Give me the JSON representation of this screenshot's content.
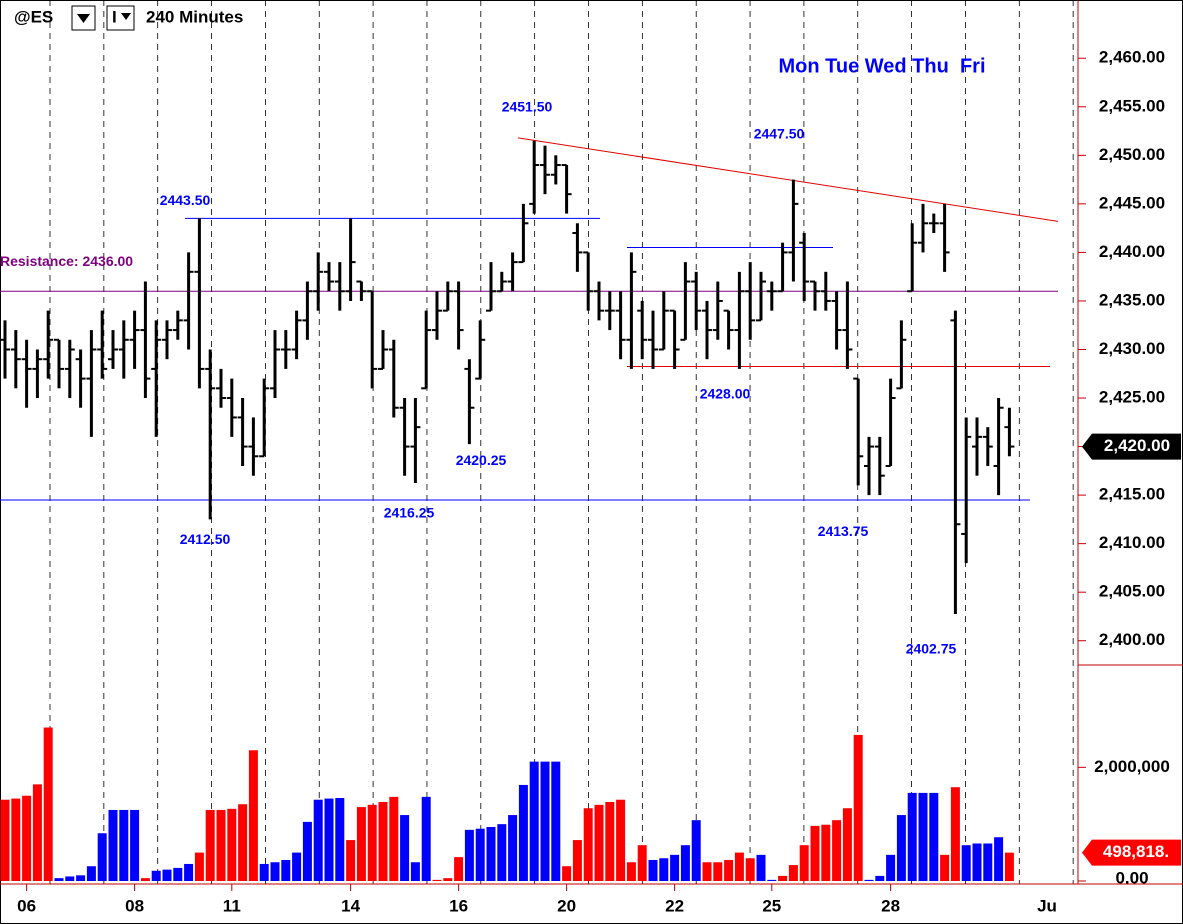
{
  "chart_data": {
    "type": "ohlc",
    "toolbar": {
      "symbol": "@ES",
      "interval_type": "I",
      "interval": "240 Minutes"
    },
    "days_label": "Mon Tue Wed Thu  Fri",
    "categories": [
      null,
      null,
      "06",
      null,
      null,
      null,
      null,
      null,
      null,
      null,
      null,
      null,
      "08",
      null,
      null,
      null,
      null,
      null,
      null,
      null,
      null,
      "11",
      null,
      null,
      null,
      null,
      null,
      null,
      null,
      null,
      null,
      null,
      "14",
      null,
      null,
      null,
      null,
      null,
      null,
      null,
      null,
      null,
      "16",
      null,
      null,
      null,
      null,
      null,
      null,
      null,
      null,
      null,
      "20",
      null,
      null,
      null,
      null,
      null,
      null,
      null,
      null,
      null,
      "22",
      null,
      null,
      null,
      null,
      null,
      null,
      null,
      null,
      "25",
      null,
      null,
      null,
      null,
      null,
      null,
      null,
      null,
      null,
      null,
      "28",
      null,
      null,
      null,
      null,
      null,
      null,
      null,
      null,
      null,
      null,
      null
    ],
    "x_end_label": "Ju",
    "color": "#000000",
    "open": [
      2431,
      2430,
      2429,
      2428,
      2429,
      2431,
      2428,
      2429,
      2427,
      2430,
      2429,
      2430,
      2431,
      2432,
      2428,
      2431,
      2432,
      2433,
      2438,
      2428,
      2426,
      2425,
      2423,
      2420,
      2419,
      2426,
      2430,
      2430,
      2433,
      2436,
      2438,
      2437,
      2436,
      2437,
      2436,
      2428,
      2430,
      2424,
      2420,
      2426,
      2432,
      2434,
      2436,
      2428,
      2427,
      2434,
      2436,
      2437,
      2439,
      2445,
      2449,
      2448,
      2449,
      2442,
      2440,
      2436,
      2434,
      2434,
      2431,
      2434,
      2431,
      2430,
      2434,
      2431,
      2437,
      2434,
      2432,
      2434,
      2432,
      2436,
      2433,
      2436,
      2436,
      2440,
      2441,
      2437,
      2436,
      2435,
      2432,
      2427,
      2418,
      2420,
      2418,
      2426,
      2436,
      2441,
      2443,
      2443,
      2433,
      2411,
      2420,
      2421,
      2418,
      2422
    ],
    "high": [
      2433,
      2432,
      2431,
      2430,
      2434,
      2431,
      2431,
      2430,
      2432,
      2434,
      2432,
      2433,
      2434,
      2437,
      2433,
      2433,
      2434,
      2440,
      2443.5,
      2430,
      2428,
      2427,
      2425,
      2423,
      2427,
      2432,
      2432,
      2434,
      2437,
      2440,
      2439,
      2439,
      2443.5,
      2437,
      2436,
      2432,
      2431,
      2425,
      2425,
      2434,
      2436,
      2437,
      2437,
      2429,
      2433,
      2439,
      2438,
      2440,
      2445,
      2451.5,
      2451,
      2450,
      2449,
      2443,
      2440,
      2437,
      2436,
      2436,
      2440,
      2435,
      2434,
      2436,
      2434,
      2439,
      2438,
      2435,
      2437,
      2434,
      2438,
      2439,
      2438,
      2437,
      2441,
      2447.5,
      2442,
      2437,
      2438,
      2436,
      2437,
      2427,
      2421,
      2421,
      2427,
      2433,
      2443,
      2445,
      2444,
      2445,
      2434,
      2423,
      2423,
      2422,
      2425,
      2424
    ],
    "low": [
      2427,
      2426,
      2424,
      2425,
      2427,
      2426,
      2425,
      2424,
      2421,
      2427,
      2428,
      2427,
      2428,
      2425,
      2421,
      2429,
      2431,
      2430,
      2426,
      2412.5,
      2424,
      2421,
      2418,
      2417,
      2419,
      2425,
      2428,
      2429,
      2431,
      2434,
      2436,
      2434,
      2435,
      2435,
      2426,
      2428,
      2423,
      2417,
      2416.25,
      2426,
      2431,
      2434,
      2430,
      2420.25,
      2427,
      2434,
      2436,
      2436,
      2439,
      2444,
      2446,
      2447,
      2444,
      2438,
      2434,
      2433,
      2432,
      2429,
      2428,
      2429,
      2428,
      2430,
      2428,
      2431,
      2432,
      2429,
      2431,
      2430,
      2428,
      2431,
      2433,
      2434,
      2436,
      2437,
      2435,
      2434,
      2434,
      2430,
      2428,
      2416,
      2415,
      2415,
      2418,
      2426,
      2436,
      2440,
      2442,
      2438,
      2402.75,
      2408,
      2417,
      2418,
      2415,
      2419
    ],
    "close": [
      2430,
      2429,
      2428,
      2429,
      2431,
      2428,
      2430,
      2427,
      2430,
      2428,
      2430,
      2431,
      2432,
      2427,
      2431,
      2432,
      2433,
      2438,
      2428,
      2426,
      2425,
      2423,
      2420,
      2419,
      2426,
      2430,
      2430,
      2433,
      2436,
      2438,
      2437,
      2436,
      2439,
      2436,
      2428,
      2430,
      2424,
      2420,
      2422,
      2432,
      2434,
      2436,
      2432,
      2424,
      2431,
      2436,
      2437,
      2439,
      2443,
      2449,
      2448,
      2449,
      2446,
      2440,
      2436,
      2434,
      2434,
      2431,
      2438,
      2431,
      2430,
      2434,
      2430,
      2437,
      2434,
      2432,
      2435,
      2432,
      2436,
      2433,
      2437,
      2436,
      2440,
      2445,
      2437,
      2436,
      2435,
      2432,
      2430,
      2419,
      2420,
      2417,
      2425,
      2431,
      2441,
      2443,
      2443,
      2440,
      2412,
      2421,
      2421,
      2420,
      2424,
      2420
    ],
    "last_close_label": "2,420.00",
    "ylim": [
      2397.5,
      2466
    ],
    "yticks": [
      {
        "value": 2400,
        "label": "2,400.00"
      },
      {
        "value": 2405,
        "label": "2,405.00"
      },
      {
        "value": 2410,
        "label": "2,410.00"
      },
      {
        "value": 2415,
        "label": "2,415.00"
      },
      {
        "value": 2420,
        "label": "2,420.00"
      },
      {
        "value": 2425,
        "label": "2,425.00"
      },
      {
        "value": 2430,
        "label": "2,430.00"
      },
      {
        "value": 2435,
        "label": "2,435.00"
      },
      {
        "value": 2440,
        "label": "2,440.00"
      },
      {
        "value": 2445,
        "label": "2,445.00"
      },
      {
        "value": 2450,
        "label": "2,450.00"
      },
      {
        "value": 2455,
        "label": "2,455.00"
      },
      {
        "value": 2460,
        "label": "2,460.00"
      }
    ],
    "levels": [
      {
        "value": 2436,
        "color": "#800080"
      },
      {
        "value": 2443.5,
        "color": "#0000ff"
      },
      {
        "value": 2414.5,
        "color": "#0000ff"
      },
      {
        "value": 2440.5,
        "color": "#0000ff"
      },
      {
        "value": 2428.25,
        "color": "#e00000"
      }
    ],
    "trendline": {
      "values": [
        2451.8,
        2443.2
      ],
      "color": "#e00000"
    },
    "annotations": [
      {
        "value": 2436,
        "label": "Resistance: 2436.00",
        "color": "#800080"
      },
      {
        "value": 2443.5,
        "label": "2443.50",
        "color": "#0000ff"
      },
      {
        "value": 2451.5,
        "label": "2451.50",
        "color": "#0000ff"
      },
      {
        "value": 2447.5,
        "label": "2447.50",
        "color": "#0000ff"
      },
      {
        "value": 2412.5,
        "label": "2412.50",
        "color": "#0000ff"
      },
      {
        "value": 2416.25,
        "label": "2416.25",
        "color": "#0000ff"
      },
      {
        "value": 2420.25,
        "label": "2420.25",
        "color": "#0000ff"
      },
      {
        "value": 2428,
        "label": "2428.00",
        "color": "#0000ff"
      },
      {
        "value": 2413.75,
        "label": "2413.75",
        "color": "#0000ff"
      },
      {
        "value": 2402.75,
        "label": "2402.75",
        "color": "#0000ff"
      }
    ],
    "volume": {
      "values": [
        1430000,
        1450000,
        1500000,
        1700000,
        2700000,
        50000,
        80000,
        100000,
        260000,
        840000,
        1250000,
        1250000,
        1250000,
        50000,
        180000,
        200000,
        230000,
        300000,
        500000,
        1250000,
        1250000,
        1270000,
        1350000,
        2300000,
        300000,
        330000,
        370000,
        500000,
        1040000,
        1430000,
        1450000,
        1460000,
        720000,
        1300000,
        1340000,
        1390000,
        1480000,
        1160000,
        330000,
        1480000,
        20000,
        50000,
        420000,
        900000,
        920000,
        950000,
        1000000,
        1160000,
        1690000,
        2100000,
        2100000,
        2100000,
        260000,
        720000,
        1280000,
        1340000,
        1390000,
        1430000,
        330000,
        630000,
        370000,
        400000,
        460000,
        630000,
        1070000,
        330000,
        330000,
        370000,
        500000,
        400000,
        460000,
        20000,
        90000,
        280000,
        630000,
        970000,
        990000,
        1070000,
        1280000,
        2570000,
        20000,
        90000,
        460000,
        1160000,
        1550000,
        1550000,
        1550000,
        460000,
        1650000,
        630000,
        660000,
        660000,
        770000,
        498818
      ],
      "colors": [
        "#ff0000",
        "#ff0000",
        "#ff0000",
        "#ff0000",
        "#ff0000",
        "#0000ff",
        "#0000ff",
        "#0000ff",
        "#0000ff",
        "#0000ff",
        "#0000ff",
        "#0000ff",
        "#0000ff",
        "#ff0000",
        "#0000ff",
        "#0000ff",
        "#0000ff",
        "#0000ff",
        "#ff0000",
        "#ff0000",
        "#ff0000",
        "#ff0000",
        "#ff0000",
        "#ff0000",
        "#0000ff",
        "#0000ff",
        "#0000ff",
        "#0000ff",
        "#0000ff",
        "#0000ff",
        "#0000ff",
        "#0000ff",
        "#ff0000",
        "#ff0000",
        "#ff0000",
        "#ff0000",
        "#ff0000",
        "#0000ff",
        "#0000ff",
        "#0000ff",
        "#ff0000",
        "#ff0000",
        "#ff0000",
        "#0000ff",
        "#0000ff",
        "#0000ff",
        "#0000ff",
        "#0000ff",
        "#0000ff",
        "#0000ff",
        "#0000ff",
        "#0000ff",
        "#ff0000",
        "#ff0000",
        "#ff0000",
        "#ff0000",
        "#ff0000",
        "#ff0000",
        "#ff0000",
        "#ff0000",
        "#0000ff",
        "#0000ff",
        "#0000ff",
        "#0000ff",
        "#0000ff",
        "#ff0000",
        "#ff0000",
        "#ff0000",
        "#ff0000",
        "#ff0000",
        "#0000ff",
        "#0000ff",
        "#ff0000",
        "#ff0000",
        "#ff0000",
        "#ff0000",
        "#ff0000",
        "#ff0000",
        "#ff0000",
        "#ff0000",
        "#0000ff",
        "#0000ff",
        "#0000ff",
        "#0000ff",
        "#0000ff",
        "#0000ff",
        "#0000ff",
        "#ff0000",
        "#ff0000",
        "#0000ff",
        "#0000ff",
        "#0000ff",
        "#0000ff",
        "#ff0000"
      ],
      "last_value_label": "498,818.",
      "ylim": [
        0,
        3800000
      ],
      "yticks": [
        {
          "value": 0,
          "label": "0.00"
        },
        {
          "value": 2000000,
          "label": "2,000,000"
        }
      ]
    }
  }
}
